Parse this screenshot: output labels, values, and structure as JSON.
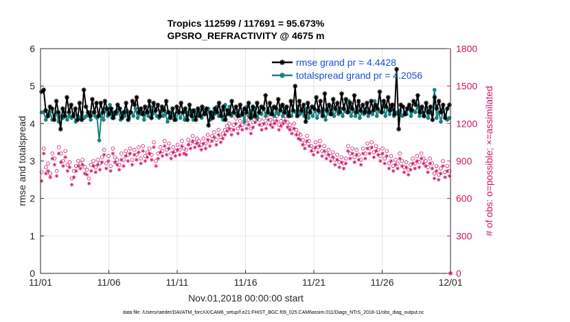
{
  "colors": {
    "rmse": "#000000",
    "spread": "#1a8080",
    "obs": "#cc1466",
    "legend_text": "#1a4dd8",
    "grid": "#e6e6e6"
  },
  "chart_data": {
    "type": "line",
    "title_line1": "Tropics 112599 / 117691 = 95.673%",
    "title_line2": "GPSRO_REFRACTIVITY @ 4675 m",
    "xlabel": "Nov.01,2018 00:00:00 start",
    "ylabel_left": "rmse and totalspread",
    "ylabel_right": "# of obs: o=possible; ×=assimilated",
    "xlim": [
      0,
      30
    ],
    "ylim_left": [
      0,
      6
    ],
    "ylim_right": [
      0,
      1800
    ],
    "x_ticks": [
      0,
      5,
      10,
      15,
      20,
      25,
      30
    ],
    "x_tick_labels": [
      "11/01",
      "11/06",
      "11/11",
      "11/16",
      "11/21",
      "11/26",
      "12/01"
    ],
    "y_ticks_left": [
      0,
      1,
      2,
      3,
      4,
      5,
      6
    ],
    "y_ticks_right": [
      0,
      300,
      600,
      900,
      1200,
      1500,
      1800
    ],
    "legend": [
      {
        "label": "rmse grand pr = 4.4428"
      },
      {
        "label": "totalspread grand pr = 4.2056"
      }
    ],
    "footnote": "data file: /Users/raeder/DAI/ATM_forcXX/CAM6_setup/f.e21.FHIST_BGC.f09_025.CAM6assim.011/Diags_NTrS_2018-11/obs_diag_output.nc",
    "series": [
      {
        "name": "rmse",
        "axis": "left",
        "marker": "asterisk",
        "values": [
          4.85,
          4.9,
          4.35,
          4.2,
          4.45,
          4.4,
          4.1,
          4.6,
          4.3,
          3.85,
          4.4,
          4.2,
          4.7,
          4.3,
          4.5,
          4.2,
          4.4,
          4.1,
          4.55,
          4.1,
          4.9,
          4.45,
          4.3,
          4.2,
          4.65,
          4.3,
          4.55,
          4.2,
          4.55,
          4.3,
          4.6,
          4.4,
          4.25,
          4.4,
          4.15,
          4.3,
          4.5,
          4.4,
          4.15,
          4.3,
          4.55,
          4.1,
          4.3,
          4.6,
          4.5,
          4.7,
          4.3,
          4.4,
          4.25,
          4.45,
          4.3,
          4.6,
          4.15,
          4.55,
          4.35,
          4.5,
          4.2,
          4.45,
          4.35,
          4.6,
          4.3,
          4.15,
          4.4,
          4.1,
          4.45,
          4.3,
          4.55,
          4.3,
          4.4,
          4.1,
          4.5,
          4.2,
          4.35,
          4.1,
          4.4,
          4.2,
          4.45,
          4.25,
          4.4,
          3.95,
          4.3,
          4.15,
          4.4,
          4.3,
          4.55,
          4.2,
          4.45,
          4.1,
          4.35,
          4.25,
          4.6,
          4.3,
          4.45,
          4.2,
          4.5,
          4.25,
          4.4,
          4.3,
          4.55,
          4.15,
          4.45,
          4.2,
          4.55,
          4.3,
          4.45,
          4.4,
          4.75,
          4.3,
          4.55,
          4.25,
          4.45,
          4.4,
          4.65,
          4.35,
          4.5,
          4.3,
          4.45,
          4.2,
          4.6,
          4.35,
          5.0,
          4.2,
          4.6,
          4.35,
          4.5,
          4.05,
          4.55,
          4.3,
          4.45,
          4.4,
          4.7,
          4.35,
          4.6,
          4.2,
          4.8,
          4.35,
          4.5,
          4.25,
          4.65,
          4.4,
          4.55,
          4.3,
          4.8,
          4.4,
          4.65,
          4.3,
          4.55,
          4.4,
          4.75,
          4.3,
          4.6,
          4.35,
          4.5,
          4.3,
          4.55,
          4.3,
          4.6,
          4.35,
          4.5,
          4.4,
          4.85,
          4.3,
          4.6,
          4.45,
          4.7,
          4.35,
          4.5,
          4.25,
          5.45,
          3.85,
          4.5,
          4.45,
          4.25,
          4.4,
          4.5,
          4.35,
          4.6,
          4.5,
          4.75,
          4.3,
          4.45,
          4.2,
          4.55,
          4.3,
          4.45,
          4.1,
          4.7,
          4.4,
          4.6,
          4.3,
          4.5,
          4.15,
          4.4,
          4.5
        ]
      },
      {
        "name": "totalspread",
        "axis": "left",
        "marker": "dot",
        "values": [
          4.3,
          4.3,
          4.1,
          4.2,
          4.3,
          4.1,
          4.2,
          4.3,
          4.05,
          4.2,
          4.15,
          4.3,
          4.1,
          4.2,
          4.15,
          4.25,
          4.05,
          4.2,
          4.15,
          4.3,
          4.15,
          4.2,
          4.25,
          4.1,
          4.3,
          4.2,
          4.15,
          3.55,
          4.25,
          4.1,
          4.4,
          4.2,
          4.5,
          4.15,
          4.3,
          4.25,
          4.35,
          4.1,
          4.3,
          4.2,
          4.35,
          4.15,
          4.3,
          4.2,
          4.4,
          4.15,
          4.25,
          4.3,
          4.1,
          4.3,
          4.2,
          4.45,
          4.25,
          4.3,
          4.2,
          4.15,
          4.35,
          4.2,
          4.25,
          4.05,
          4.3,
          4.2,
          4.25,
          4.1,
          4.3,
          4.15,
          4.3,
          4.1,
          4.3,
          4.25,
          4.35,
          4.1,
          4.3,
          4.2,
          4.35,
          4.15,
          4.35,
          4.25,
          4.4,
          4.1,
          4.3,
          4.25,
          4.45,
          4.2,
          4.35,
          4.1,
          4.5,
          4.25,
          4.45,
          4.2,
          4.3,
          4.25,
          4.35,
          4.2,
          4.3,
          4.05,
          4.45,
          4.2,
          4.35,
          4.2,
          4.4,
          4.15,
          4.3,
          4.25,
          4.4,
          4.2,
          4.35,
          4.25,
          4.4,
          4.2,
          4.3,
          4.25,
          4.45,
          4.2,
          4.4,
          4.25,
          4.3,
          4.2,
          4.35,
          4.3,
          4.45,
          4.25,
          4.3,
          4.2,
          4.4,
          4.15,
          4.3,
          4.2,
          4.35,
          4.15,
          4.3,
          4.3,
          4.4,
          4.1,
          4.3,
          4.25,
          4.45,
          4.2,
          4.35,
          4.25,
          4.4,
          4.2,
          4.35,
          4.3,
          4.6,
          4.2,
          4.35,
          4.2,
          4.45,
          4.15,
          4.3,
          4.25,
          4.4,
          4.2,
          4.3,
          4.25,
          4.6,
          4.2,
          4.35,
          4.3,
          4.6,
          4.2,
          4.4,
          4.25,
          4.5,
          4.2,
          4.3,
          4.25,
          4.35,
          4.2,
          4.3,
          4.25,
          4.45,
          4.2,
          4.35,
          4.3,
          4.45,
          4.2,
          4.3,
          4.2,
          4.4,
          4.15,
          4.3,
          4.25,
          4.9,
          4.15,
          4.3,
          4.05,
          4.35,
          4.2,
          4.1,
          4.15
        ]
      },
      {
        "name": "obs_possible",
        "axis": "right",
        "marker": "circle",
        "values": [
          810,
          1000,
          850,
          880,
          800,
          960,
          920,
          820,
          1010,
          960,
          900,
          980,
          870,
          890,
          760,
          820,
          860,
          900,
          880,
          910,
          850,
          830,
          760,
          870,
          900,
          850,
          910,
          880,
          930,
          990,
          880,
          940,
          860,
          1000,
          930,
          910,
          870,
          960,
          910,
          980,
          950,
          1000,
          910,
          990,
          950,
          1010,
          920,
          1020,
          940,
          970,
          1000,
          950,
          1050,
          900,
          960,
          1010,
          980,
          1060,
          990,
          1040,
          960,
          1010,
          980,
          1030,
          990,
          1060,
          1000,
          990,
          1070,
          1040,
          1100,
          1050,
          1080,
          1060,
          1030,
          1080,
          1040,
          1110,
          1060,
          1100,
          1130,
          1070,
          1150,
          1090,
          1120,
          1150,
          1180,
          1200,
          1150,
          1190,
          1240,
          1160,
          1220,
          1190,
          1270,
          1200,
          1230,
          1160,
          1210,
          1250,
          1270,
          1230,
          1190,
          1240,
          1200,
          1270,
          1230,
          1210,
          1240,
          1260,
          1190,
          1220,
          1240,
          1260,
          1210,
          1190,
          1160,
          1200,
          1150,
          1120,
          1110,
          1070,
          1040,
          1100,
          1060,
          1020,
          990,
          1050,
          1010,
          1060,
          980,
          1020,
          960,
          990,
          940,
          970,
          910,
          950,
          890,
          930,
          880,
          920,
          1020,
          960,
          1000,
          930,
          990,
          950,
          910,
          1000,
          960,
          1040,
          1000,
          1050,
          970,
          1020,
          990,
          940,
          1000,
          920,
          980,
          880,
          940,
          860,
          910,
          880,
          960,
          900,
          850,
          890,
          830,
          870,
          920,
          880,
          940,
          890,
          960,
          920,
          900,
          850,
          920,
          880,
          800,
          860,
          790,
          840,
          900,
          810,
          860,
          820
        ]
      },
      {
        "name": "obs_assimilated",
        "axis": "right",
        "marker": "asterisk",
        "values": [
          740,
          960,
          800,
          820,
          770,
          920,
          870,
          780,
          960,
          890,
          860,
          930,
          820,
          850,
          710,
          770,
          820,
          860,
          840,
          870,
          800,
          790,
          720,
          820,
          860,
          810,
          870,
          830,
          890,
          950,
          840,
          900,
          820,
          960,
          890,
          870,
          830,
          910,
          860,
          940,
          900,
          960,
          870,
          950,
          910,
          970,
          880,
          980,
          900,
          930,
          960,
          910,
          1010,
          860,
          920,
          970,
          940,
          1020,
          950,
          1000,
          920,
          970,
          940,
          990,
          950,
          1020,
          960,
          950,
          1030,
          1000,
          1060,
          1010,
          1040,
          1020,
          990,
          1040,
          1000,
          1070,
          1020,
          1060,
          1090,
          1030,
          1110,
          1050,
          1080,
          1110,
          1140,
          1160,
          1110,
          1150,
          1200,
          1120,
          1180,
          1150,
          1230,
          1160,
          1190,
          1120,
          1170,
          1210,
          1230,
          1190,
          1150,
          1200,
          1160,
          1230,
          1190,
          1170,
          1200,
          1220,
          1150,
          1180,
          1200,
          1220,
          1170,
          1150,
          1120,
          1160,
          1110,
          1080,
          1070,
          1030,
          1000,
          1060,
          1020,
          980,
          950,
          1010,
          970,
          1020,
          940,
          980,
          920,
          950,
          900,
          930,
          870,
          910,
          850,
          890,
          840,
          880,
          980,
          920,
          960,
          890,
          950,
          910,
          870,
          960,
          920,
          1000,
          960,
          1010,
          930,
          980,
          950,
          900,
          960,
          880,
          940,
          840,
          900,
          820,
          870,
          840,
          920,
          860,
          810,
          850,
          790,
          830,
          880,
          840,
          900,
          850,
          920,
          880,
          860,
          810,
          880,
          840,
          760,
          820,
          750,
          800,
          860,
          770,
          820,
          780
        ]
      }
    ]
  }
}
